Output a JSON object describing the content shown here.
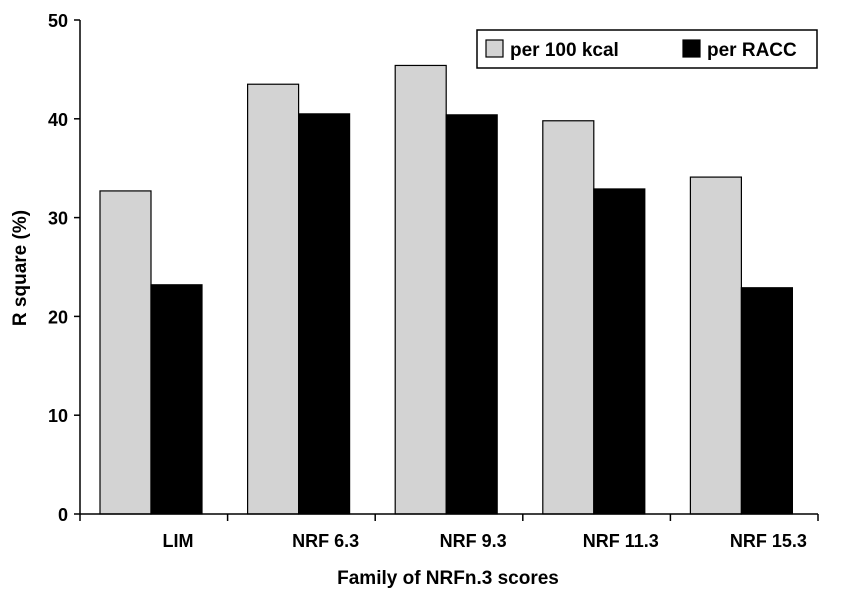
{
  "chart_data": {
    "type": "bar",
    "categories": [
      "LIM",
      "NRF 6.3",
      "NRF 9.3",
      "NRF 11.3",
      "NRF 15.3"
    ],
    "series": [
      {
        "name": "per 100 kcal",
        "color": "#d3d3d3",
        "values": [
          32.7,
          43.5,
          45.4,
          39.8,
          34.1
        ]
      },
      {
        "name": "per RACC",
        "color": "#000000",
        "values": [
          23.2,
          40.5,
          40.4,
          32.9,
          22.9
        ]
      }
    ],
    "title": "",
    "xlabel": "Family of NRFn.3 scores",
    "ylabel": "R square (%)",
    "ylim": [
      0,
      50
    ],
    "yticks": [
      "0",
      "10",
      "20",
      "30",
      "40",
      "50"
    ],
    "grid": false,
    "legend_position": "top-right"
  }
}
